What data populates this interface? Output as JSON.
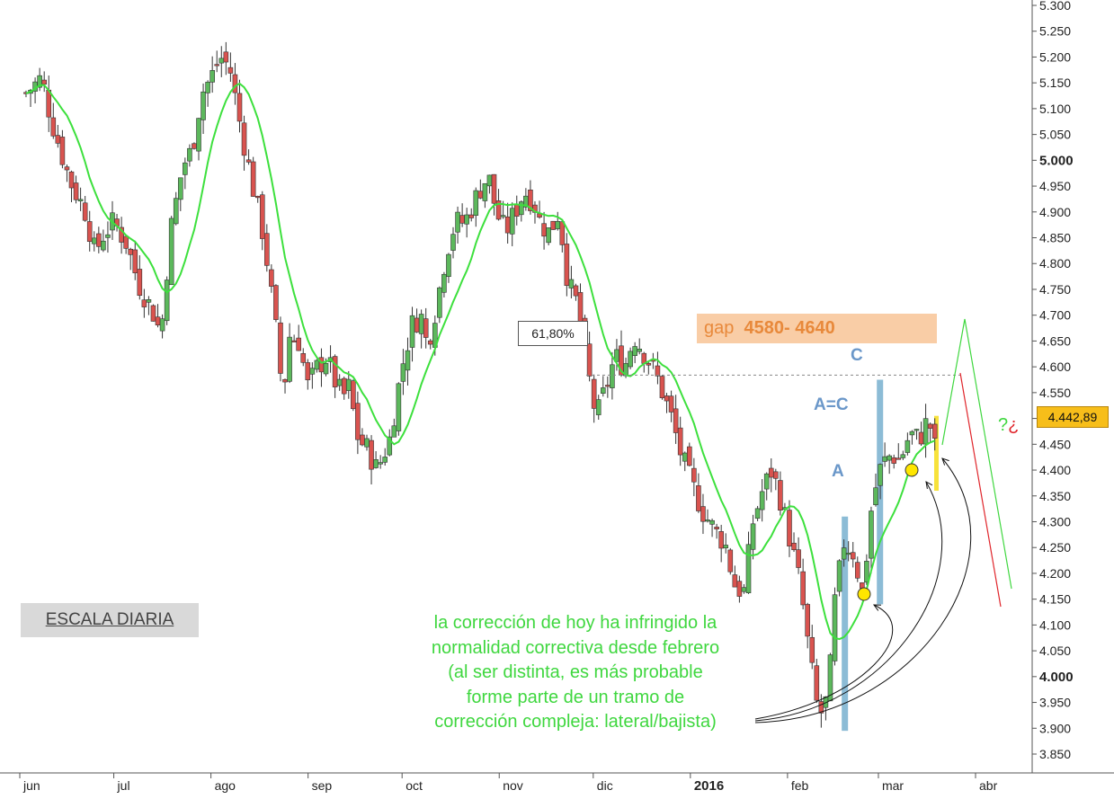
{
  "chart_data": {
    "type": "candlestick",
    "y_axis": {
      "ticks": [
        "5.300",
        "5.250",
        "5.200",
        "5.150",
        "5.100",
        "5.050",
        "5.000",
        "4.950",
        "4.900",
        "4.850",
        "4.800",
        "4.750",
        "4.700",
        "4.650",
        "4.600",
        "4.550",
        "4.500",
        "4.450",
        "4.400",
        "4.350",
        "4.300",
        "4.250",
        "4.200",
        "4.150",
        "4.100",
        "4.050",
        "4.000",
        "3.950",
        "3.900",
        "3.850"
      ],
      "bold_ticks": [
        "5.000",
        "4.500",
        "4.000"
      ],
      "range": [
        3830,
        5310
      ]
    },
    "x_axis": {
      "ticks": [
        {
          "label": "jun",
          "day": 0
        },
        {
          "label": "jul",
          "day": 30
        },
        {
          "label": "ago",
          "day": 61
        },
        {
          "label": "sep",
          "day": 92
        },
        {
          "label": "oct",
          "day": 122
        },
        {
          "label": "nov",
          "day": 153
        },
        {
          "label": "dic",
          "day": 183
        },
        {
          "label": "2016",
          "day": 214,
          "bold": true
        },
        {
          "label": "feb",
          "day": 245
        },
        {
          "label": "mar",
          "day": 274
        },
        {
          "label": "abr",
          "day": 305
        }
      ],
      "start_date": "2015-06-01"
    },
    "closes": [
      [
        2,
        5130
      ],
      [
        7,
        5160
      ],
      [
        10,
        5080
      ],
      [
        13,
        5020
      ],
      [
        16,
        4960
      ],
      [
        21,
        4900
      ],
      [
        24,
        4820
      ],
      [
        27,
        4860
      ],
      [
        30,
        4880
      ],
      [
        34,
        4840
      ],
      [
        38,
        4760
      ],
      [
        43,
        4700
      ],
      [
        45,
        4660
      ],
      [
        48,
        4860
      ],
      [
        52,
        4990
      ],
      [
        55,
        5020
      ],
      [
        58,
        5130
      ],
      [
        61,
        5160
      ],
      [
        64,
        5200
      ],
      [
        67,
        5180
      ],
      [
        70,
        5080
      ],
      [
        72,
        5020
      ],
      [
        75,
        4930
      ],
      [
        77,
        4880
      ],
      [
        79,
        4800
      ],
      [
        82,
        4660
      ],
      [
        84,
        4540
      ],
      [
        86,
        4660
      ],
      [
        89,
        4650
      ],
      [
        92,
        4560
      ],
      [
        95,
        4600
      ],
      [
        98,
        4620
      ],
      [
        100,
        4580
      ],
      [
        103,
        4540
      ],
      [
        105,
        4560
      ],
      [
        108,
        4460
      ],
      [
        111,
        4440
      ],
      [
        114,
        4400
      ],
      [
        118,
        4460
      ],
      [
        122,
        4600
      ],
      [
        125,
        4680
      ],
      [
        128,
        4700
      ],
      [
        130,
        4640
      ],
      [
        133,
        4720
      ],
      [
        136,
        4820
      ],
      [
        139,
        4880
      ],
      [
        142,
        4880
      ],
      [
        145,
        4920
      ],
      [
        148,
        4960
      ],
      [
        150,
        4960
      ],
      [
        152,
        4900
      ],
      [
        155,
        4860
      ],
      [
        158,
        4900
      ],
      [
        161,
        4940
      ],
      [
        164,
        4920
      ],
      [
        166,
        4880
      ],
      [
        169,
        4860
      ],
      [
        172,
        4900
      ],
      [
        175,
        4760
      ],
      [
        178,
        4720
      ],
      [
        181,
        4600
      ],
      [
        184,
        4500
      ],
      [
        187,
        4560
      ],
      [
        190,
        4620
      ],
      [
        193,
        4600
      ],
      [
        196,
        4660
      ],
      [
        200,
        4620
      ],
      [
        204,
        4570
      ],
      [
        208,
        4500
      ],
      [
        211,
        4430
      ],
      [
        214,
        4380
      ],
      [
        218,
        4320
      ],
      [
        222,
        4280
      ],
      [
        225,
        4260
      ],
      [
        228,
        4180
      ],
      [
        231,
        4160
      ],
      [
        234,
        4300
      ],
      [
        237,
        4360
      ],
      [
        240,
        4400
      ],
      [
        243,
        4340
      ],
      [
        246,
        4260
      ],
      [
        249,
        4180
      ],
      [
        252,
        4040
      ],
      [
        255,
        3920
      ],
      [
        258,
        3960
      ],
      [
        260,
        4140
      ],
      [
        263,
        4260
      ],
      [
        266,
        4240
      ],
      [
        269,
        4160
      ],
      [
        272,
        4340
      ],
      [
        275,
        4410
      ],
      [
        278,
        4430
      ],
      [
        281,
        4420
      ],
      [
        284,
        4470
      ],
      [
        287,
        4460
      ],
      [
        290,
        4500
      ],
      [
        292,
        4443
      ]
    ],
    "sma_line_color": "#3de03d",
    "up_color": "#5cb85c",
    "down_color": "#d9534f",
    "last_price": "4.442,89",
    "retracement_level": 4584,
    "retracement_label": "61,80%",
    "gap_label_prefix": "gap",
    "gap_label_range": "4580- 4640",
    "wave_labels": [
      "A",
      "A=C",
      "C"
    ],
    "bar_colors": {
      "waves": "#8cbcd6",
      "today": "#f7e23b",
      "gap": "#f9cda6",
      "projection_up": "#3fd73f",
      "projection_down": "#e0252b"
    },
    "question_marks": [
      "?",
      "¿"
    ],
    "scale_label": "ESCALA DIARIA",
    "note_lines": [
      "la corrección de hoy ha infringido la",
      "normalidad correctiva desde febrero",
      "(al ser distinta, es más probable",
      "forme parte de un tramo de",
      "corrección compleja: lateral/bajista)"
    ]
  }
}
